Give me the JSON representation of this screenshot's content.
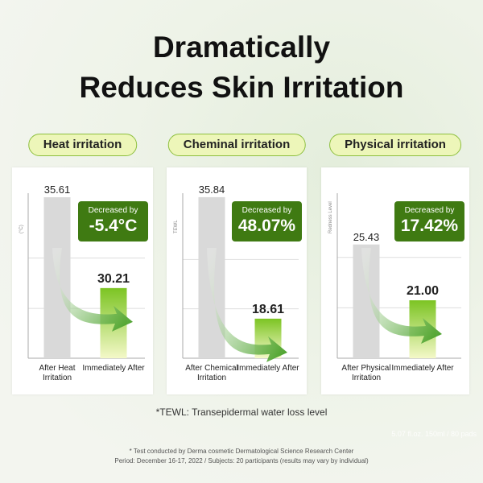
{
  "headline": [
    "Dramatically",
    "Reduces Skin Irritation"
  ],
  "chart_data": [
    {
      "type": "bar",
      "title": "Heat irritation",
      "y_label": "(°C)",
      "categories": [
        "After Heat Irritation",
        "Immediately After"
      ],
      "values": [
        35.61,
        30.21
      ],
      "colors": [
        "#d9d9d9",
        "#7cc423"
      ],
      "ylim": [
        26.04,
        35.85
      ],
      "yticks": [
        29,
        32
      ],
      "grid": true,
      "annotation": {
        "label": "Decreased by",
        "value": "-5.4°C"
      }
    },
    {
      "type": "bar",
      "title": "Cheminal irritation",
      "y_label": "TEWL",
      "categories": [
        "After Chemical Irritation",
        "Immediately After"
      ],
      "values": [
        35.84,
        18.61
      ],
      "colors": [
        "#d9d9d9",
        "#7cc423"
      ],
      "ylim": [
        13,
        36.4
      ],
      "yticks": [
        20,
        27
      ],
      "grid": true,
      "annotation": {
        "label": "Decreased by",
        "value": "48.07%"
      }
    },
    {
      "type": "bar",
      "title": "Physical irritation",
      "y_label": "Redness Level",
      "categories": [
        "After Physical Irritation",
        "Immediately After"
      ],
      "values": [
        25.43,
        21.0
      ],
      "value_labels": [
        "25.43",
        "21.00"
      ],
      "colors": [
        "#d9d9d9",
        "#7cc423"
      ],
      "ylim": [
        16.4,
        29.5
      ],
      "yticks": [
        20.4,
        24.4
      ],
      "grid": true,
      "annotation": {
        "label": "Decreased by",
        "value": "17.42%"
      }
    }
  ],
  "tewl_note": "*TEWL: Transepidermal water loss level",
  "footnotes": [
    "* Test conducted by Derma cosmetic Dermatological Science Research Center",
    "Period: December 16-17, 2022 / Subjects: 20 participants (results may vary by individual)"
  ],
  "background_text": "5.07 fl.oz. 150ml / 80 pads"
}
